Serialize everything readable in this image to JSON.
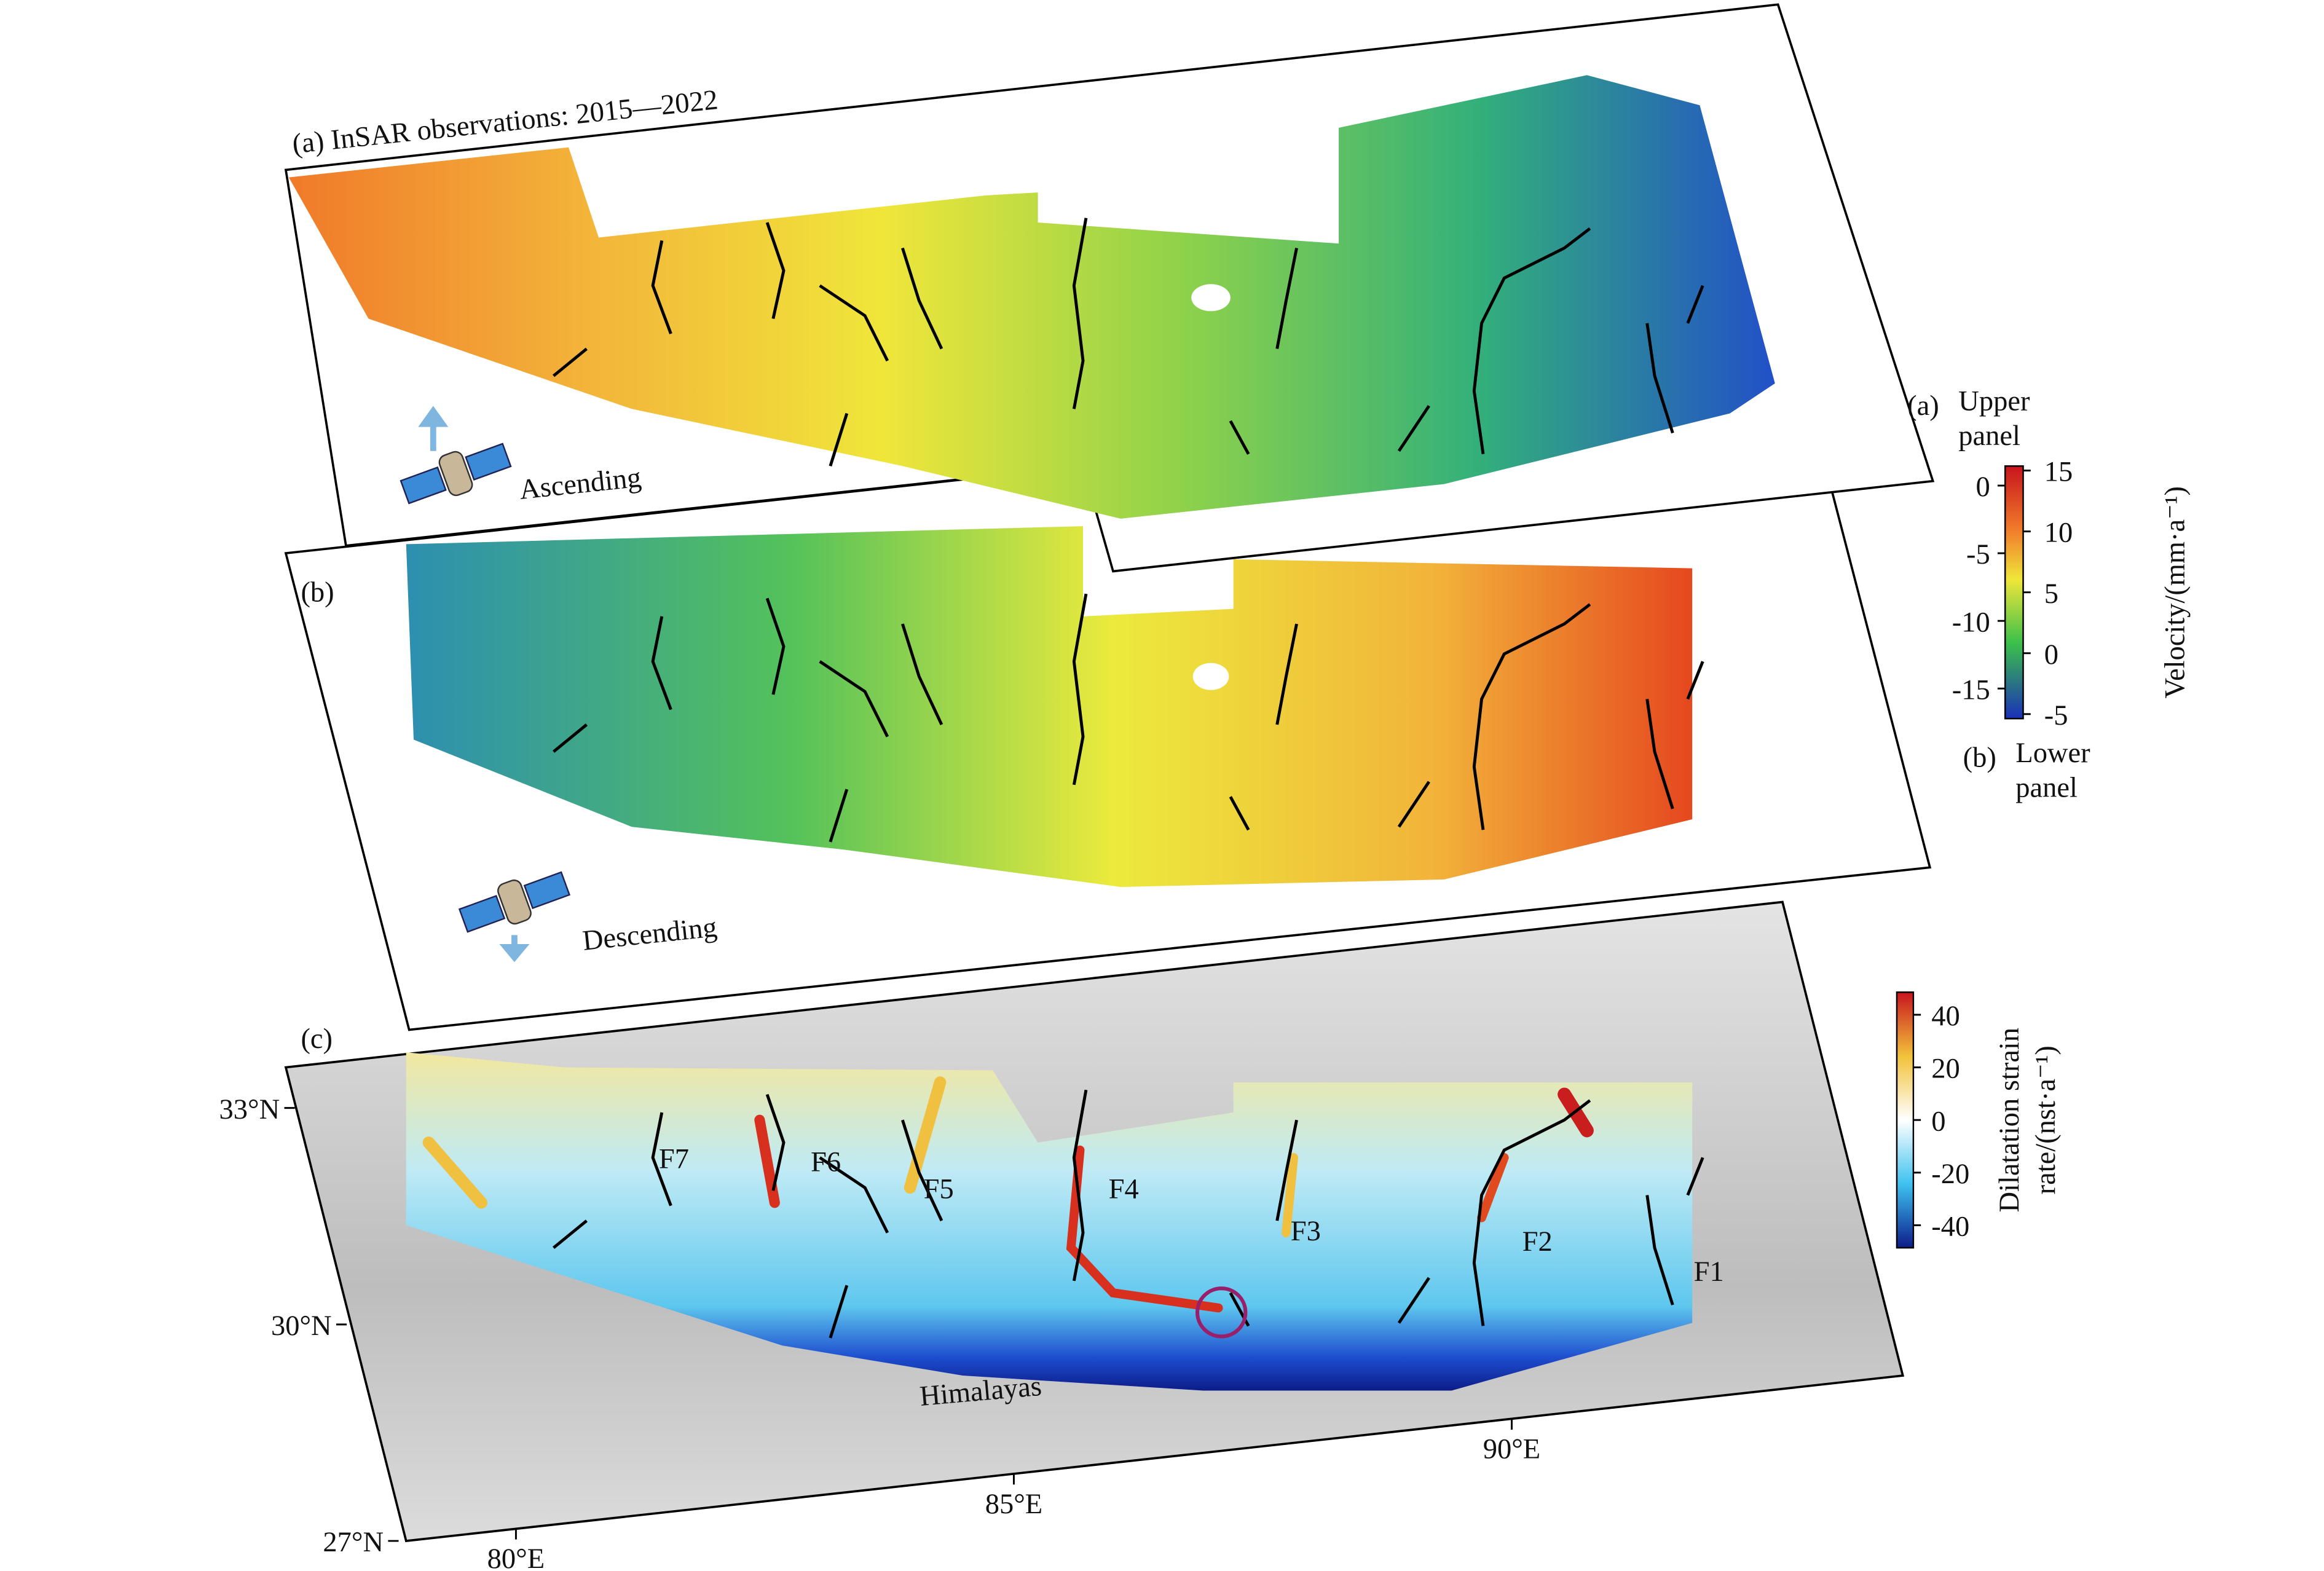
{
  "panels": {
    "a": {
      "label": "(a) InSAR observations: 2015—2022",
      "pass": "Ascending"
    },
    "b": {
      "label": "(b)",
      "pass": "Descending"
    },
    "c": {
      "label": "(c)",
      "place_label": "Himalayas",
      "faults": [
        "F1",
        "F2",
        "F3",
        "F4",
        "F5",
        "F6",
        "F7"
      ],
      "lat_ticks": [
        {
          "value": 27,
          "label": "27°N"
        },
        {
          "value": 30,
          "label": "30°N"
        },
        {
          "value": 33,
          "label": "33°N"
        }
      ],
      "lon_ticks": [
        {
          "value": 80,
          "label": "80°E"
        },
        {
          "value": 85,
          "label": "85°E"
        },
        {
          "value": 90,
          "label": "90°E"
        }
      ]
    }
  },
  "velocity_colorbar": {
    "title": "Velocity/(mm·a⁻¹)",
    "upper": {
      "marker": "(a)",
      "text": [
        "Upper",
        "panel"
      ],
      "ticks": [
        15,
        10,
        5,
        0,
        -5
      ]
    },
    "lower": {
      "marker": "(b)",
      "text": [
        "Lower",
        "panel"
      ],
      "ticks": [
        0,
        -5,
        -10,
        -15
      ]
    }
  },
  "strain_colorbar": {
    "title": [
      "Dilatation strain",
      "rate/(nst·a⁻¹)"
    ],
    "ticks": [
      40,
      20,
      0,
      -20,
      -40
    ]
  }
}
